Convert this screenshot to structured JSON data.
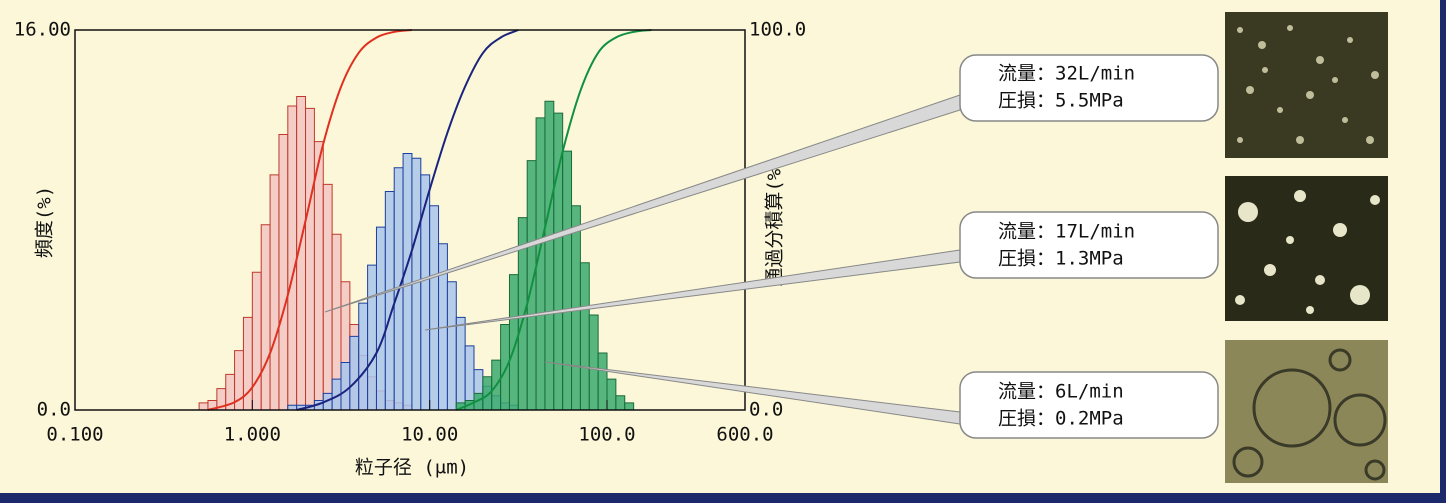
{
  "chart_data": {
    "type": "histogram",
    "xlabel": "粒子径 (μm)",
    "ylabel": "頻度(%)",
    "y2label": "通過分積算(%)",
    "xscale": "log",
    "xlim": [
      0.1,
      600
    ],
    "ylim": [
      0,
      16
    ],
    "y2lim": [
      0,
      100
    ],
    "xticks": [
      {
        "value": 0.1,
        "label": "0.100"
      },
      {
        "value": 1,
        "label": "1.000"
      },
      {
        "value": 10,
        "label": "10.00"
      },
      {
        "value": 100,
        "label": "100.0"
      },
      {
        "value": 600,
        "label": "600.0"
      }
    ],
    "yticks": [
      {
        "value": 0,
        "label": "0.0"
      },
      {
        "value": 16,
        "label": "16.00"
      }
    ],
    "y2ticks": [
      {
        "value": 0,
        "label": "0.0"
      },
      {
        "value": 100,
        "label": "100.0"
      }
    ],
    "bins": [
      0.501,
      0.562,
      0.631,
      0.708,
      0.794,
      0.891,
      1,
      1.122,
      1.259,
      1.413,
      1.585,
      1.778,
      1.995,
      2.239,
      2.512,
      2.818,
      3.162,
      3.548,
      3.981,
      4.467,
      5.012,
      5.623,
      6.31,
      7.079,
      7.943,
      8.913,
      10,
      11.22,
      12.59,
      14.13,
      15.85,
      17.78,
      19.95,
      22.39,
      25.12,
      28.18,
      31.62,
      35.48,
      39.81,
      44.67,
      50.12,
      56.23,
      63.1,
      70.79,
      79.43,
      89.13,
      100,
      112.2,
      125.9,
      141.3
    ],
    "series": [
      {
        "color": "#f2c6c4",
        "edgecolor": "#c0392b",
        "values": [
          0.3,
          0.4,
          0.9,
          1.5,
          2.5,
          3.9,
          5.8,
          7.8,
          9.9,
          11.6,
          12.8,
          13.2,
          12.7,
          11.3,
          9.5,
          7.4,
          5.4,
          3.6,
          2.3,
          1.4,
          0.8,
          0.4,
          0.3,
          0.2,
          0,
          0,
          0,
          0,
          0,
          0,
          0,
          0,
          0,
          0,
          0,
          0,
          0,
          0,
          0,
          0,
          0,
          0,
          0,
          0,
          0,
          0,
          0,
          0,
          0
        ],
        "cumulative": {
          "color": "#e03020",
          "axis": "y2",
          "x": [
            0.56,
            0.79,
            1,
            1.26,
            1.58,
            2,
            2.51,
            3.16,
            3.98,
            5.01,
            6.31,
            7.94
          ],
          "values": [
            0,
            2,
            6,
            15,
            30,
            50,
            70,
            85,
            94,
            98,
            99.5,
            100
          ]
        }
      },
      {
        "color": "#a9c6ec",
        "edgecolor": "#1d3f9e",
        "values": [
          0,
          0,
          0,
          0,
          0,
          0,
          0,
          0,
          0,
          0,
          0.2,
          0.2,
          0.2,
          0.4,
          0.7,
          1.3,
          2.0,
          3.1,
          4.5,
          6.1,
          7.7,
          9.2,
          10.2,
          10.8,
          10.6,
          9.9,
          8.6,
          7.0,
          5.4,
          3.9,
          2.7,
          1.7,
          1.0,
          0.6,
          0.3,
          0.2,
          0,
          0,
          0,
          0,
          0,
          0,
          0,
          0,
          0,
          0,
          0,
          0,
          0
        ],
        "cumulative": {
          "color": "#1a237e",
          "axis": "y2",
          "x": [
            1.78,
            2.51,
            3.55,
            5.01,
            6.31,
            7.94,
            10,
            12.6,
            15.8,
            20,
            25.1,
            31.6
          ],
          "values": [
            0,
            2,
            6,
            15,
            28,
            42,
            58,
            73,
            85,
            94,
            98,
            100
          ]
        }
      },
      {
        "color": "#3aaa6e",
        "edgecolor": "#1a6b3b",
        "values": [
          0,
          0,
          0,
          0,
          0,
          0,
          0,
          0,
          0,
          0,
          0,
          0,
          0,
          0,
          0,
          0,
          0,
          0,
          0,
          0,
          0,
          0,
          0,
          0,
          0,
          0,
          0,
          0,
          0,
          0.3,
          0.4,
          0.7,
          1.4,
          2.1,
          3.6,
          5.7,
          8.1,
          10.5,
          12.3,
          13.0,
          12.5,
          10.9,
          8.6,
          6.2,
          4.0,
          2.4,
          1.3,
          0.6,
          0.3
        ],
        "cumulative": {
          "color": "#109040",
          "axis": "y2",
          "x": [
            14.1,
            17.8,
            22.4,
            28.2,
            35.5,
            44.7,
            56.2,
            70.8,
            89.1,
            112,
            141,
            178
          ],
          "values": [
            0,
            2,
            5,
            13,
            28,
            48,
            68,
            84,
            94,
            98,
            99.5,
            100
          ]
        }
      }
    ],
    "annotations": [
      [
        "流量：32L/min",
        "圧損：5.5MPa"
      ],
      [
        "流量：17L/min",
        "圧損：1.3MPa"
      ],
      [
        "流量：6L/min",
        "圧損：0.2MPa"
      ]
    ]
  }
}
